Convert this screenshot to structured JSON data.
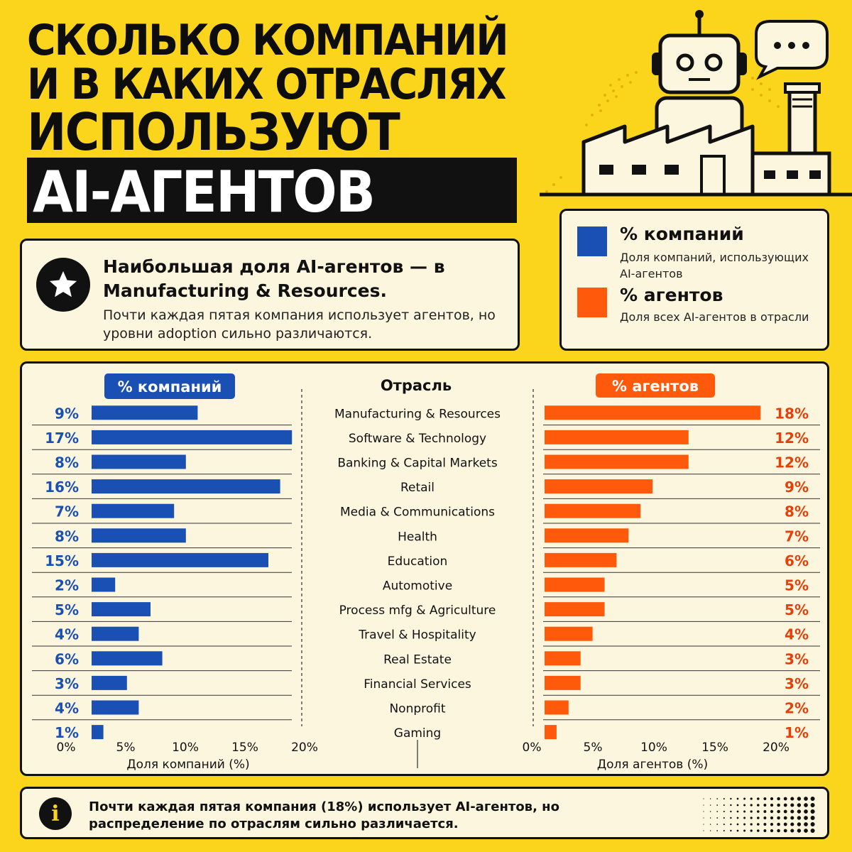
{
  "title": {
    "line1": "СКОЛЬКО КОМПАНИЙ",
    "line2": "И В КАКИХ ОТРАСЛЯХ",
    "line3": "ИСПОЛЬЗУЮТ",
    "line4": "AI-АГЕНТОВ"
  },
  "highlight": {
    "icon": "star-icon",
    "headline": "Наибольшая доля AI-агентов — в Manufacturing & Resources.",
    "subtext": "Почти каждая пятая компания использует агентов, но уровни adoption сильно различаются."
  },
  "legend": {
    "companies": {
      "label": "% компаний",
      "description": "Доля компаний, использующих AI-агентов",
      "color": "#1a4fb4"
    },
    "agents": {
      "label": "% агентов",
      "description": "Доля всех AI-агентов в отрасли",
      "color": "#ff5a0c"
    }
  },
  "chart_data": {
    "type": "bar",
    "layout": "butterfly",
    "center_header": "Отрасль",
    "left_header": "% компаний",
    "right_header": "% агентов",
    "categories": [
      "Manufacturing & Resources",
      "Software & Technology",
      "Banking & Capital Markets",
      "Retail",
      "Media & Communications",
      "Health",
      "Education",
      "Automotive",
      "Process mfg & Agriculture",
      "Travel & Hospitality",
      "Real Estate",
      "Financial Services",
      "Nonprofit",
      "Gaming"
    ],
    "series": [
      {
        "name": "% компаний",
        "color": "#1a4fb4",
        "values": [
          9,
          17,
          8,
          16,
          7,
          8,
          15,
          2,
          5,
          4,
          6,
          3,
          4,
          1
        ],
        "labels": [
          "9%",
          "17%",
          "8%",
          "16%",
          "7%",
          "8%",
          "15%",
          "2%",
          "5%",
          "4%",
          "6%",
          "3%",
          "4%",
          "1%"
        ]
      },
      {
        "name": "% агентов",
        "color": "#ff5a0c",
        "values": [
          18,
          12,
          12,
          9,
          8,
          7,
          6,
          5,
          5,
          4,
          3,
          3,
          2,
          1
        ],
        "labels": [
          "18%",
          "12%",
          "12%",
          "9%",
          "8%",
          "7%",
          "6%",
          "5%",
          "5%",
          "4%",
          "3%",
          "3%",
          "2%",
          "1%"
        ]
      }
    ],
    "left_axis": {
      "label": "Доля компаний (%)",
      "ticks": [
        "0%",
        "5%",
        "10%",
        "15%",
        "20%"
      ]
    },
    "right_axis": {
      "label": "Доля агентов (%)",
      "ticks": [
        "0%",
        "5%",
        "10%",
        "15%",
        "20%"
      ]
    }
  },
  "info": {
    "icon": "info-icon",
    "symbol": "i",
    "text": "Почти каждая пятая компания (18%) использует AI-агентов, но распределение по отраслям сильно различается."
  }
}
